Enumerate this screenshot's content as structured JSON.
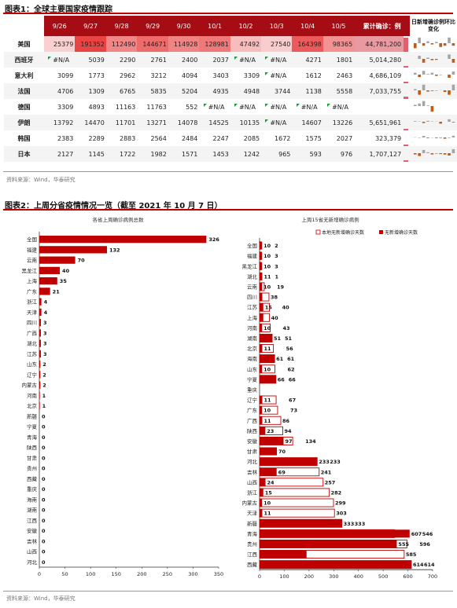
{
  "fig1": {
    "title": "图表1：全球主要国家疫情跟踪",
    "dates": [
      "9/26",
      "9/27",
      "9/28",
      "9/29",
      "9/30",
      "10/1",
      "10/2",
      "10/3",
      "10/4",
      "10/5"
    ],
    "total_header": "累计确诊：例",
    "trend_header": "日新增确诊例环比变化",
    "na_label": "#N/A",
    "rows": [
      {
        "country": "美国",
        "values": [
          "25379",
          "191352",
          "112490",
          "144671",
          "114928",
          "128981",
          "47492",
          "27540",
          "164398",
          "98365"
        ],
        "total": "44,781,200",
        "total_val": 44781200,
        "spark": [
          -0.8,
          0.9,
          -0.4,
          0.3,
          -0.2,
          0.2,
          -0.6,
          -0.4,
          0.9,
          -0.4
        ]
      },
      {
        "country": "西班牙",
        "values": [
          "#N/A",
          "5039",
          "2290",
          "2761",
          "2400",
          "2037",
          "#N/A",
          "#N/A",
          "4271",
          "1801"
        ],
        "total": "5,014,280",
        "total_val": 5014280,
        "spark": [
          0,
          0.5,
          -0.6,
          0.2,
          -0.2,
          -0.15,
          0,
          0,
          0.7,
          -0.6
        ]
      },
      {
        "country": "意大利",
        "values": [
          "3099",
          "1773",
          "2962",
          "3212",
          "4094",
          "3403",
          "3309",
          "#N/A",
          "1612",
          "2463"
        ],
        "total": "4,686,109",
        "total_val": 4686109,
        "spark": [
          0.3,
          -0.4,
          0.6,
          0.1,
          0.3,
          -0.2,
          -0.05,
          0,
          -0.5,
          0.5
        ]
      },
      {
        "country": "法国",
        "values": [
          "4706",
          "1309",
          "6765",
          "5835",
          "5204",
          "4935",
          "4948",
          "3744",
          "1138",
          "5558"
        ],
        "total": "7,033,755",
        "total_val": 7033755,
        "spark": [
          0.2,
          -0.7,
          0.9,
          -0.2,
          -0.1,
          -0.05,
          0.02,
          -0.25,
          -0.7,
          0.9
        ]
      },
      {
        "country": "德国",
        "values": [
          "3309",
          "4893",
          "11163",
          "11763",
          "552",
          "#N/A",
          "#N/A",
          "#N/A",
          "#N/A",
          "#N/A"
        ],
        "total": "",
        "total_val": 0,
        "spark": [
          0.2,
          0.4,
          0.8,
          0.1,
          -0.9,
          0,
          0,
          0,
          0,
          0
        ]
      },
      {
        "country": "伊朗",
        "values": [
          "13792",
          "14470",
          "11701",
          "13271",
          "14078",
          "14525",
          "10135",
          "#N/A",
          "14607",
          "13226"
        ],
        "total": "5,651,961",
        "total_val": 5651961,
        "spark": [
          0.1,
          0.05,
          -0.2,
          0.15,
          0.06,
          0.03,
          -0.3,
          0,
          0.4,
          -0.1
        ]
      },
      {
        "country": "韩国",
        "values": [
          "2383",
          "2289",
          "2883",
          "2564",
          "2484",
          "2247",
          "2085",
          "1672",
          "1575",
          "2027"
        ],
        "total": "323,379",
        "total_val": 323379,
        "spark": [
          0.05,
          -0.04,
          0.25,
          -0.1,
          -0.03,
          -0.1,
          -0.07,
          -0.2,
          -0.06,
          0.28
        ]
      },
      {
        "country": "日本",
        "values": [
          "2127",
          "1145",
          "1722",
          "1982",
          "1571",
          "1453",
          "1242",
          "965",
          "593",
          "976"
        ],
        "total": "1,707,127",
        "total_val": 1707127,
        "spark": [
          -0.2,
          -0.45,
          0.5,
          0.15,
          -0.2,
          -0.07,
          -0.14,
          -0.22,
          -0.38,
          0.64
        ]
      }
    ],
    "source": "资料来源：Wind，华泰研究"
  },
  "fig2": {
    "title": "图表2：上周分省疫情情况一览（截至 2021 年 10 月 7 日）",
    "source": "资料来源：Wind，华泰研究"
  },
  "chart_data": [
    {
      "type": "bar",
      "orientation": "horizontal",
      "title": "各省上周确诊病例总数",
      "categories": [
        "全国",
        "福建",
        "云南",
        "黑龙江",
        "上海",
        "广东",
        "浙江",
        "天津",
        "四川",
        "广西",
        "湖北",
        "江苏",
        "山东",
        "辽宁",
        "内蒙古",
        "河南",
        "北京",
        "新疆",
        "宁夏",
        "青海",
        "陕西",
        "甘肃",
        "贵州",
        "西藏",
        "重庆",
        "海南",
        "湖南",
        "江西",
        "安徽",
        "吉林",
        "山西",
        "河北"
      ],
      "values": [
        326,
        132,
        70,
        40,
        35,
        21,
        4,
        4,
        3,
        3,
        3,
        3,
        2,
        2,
        2,
        1,
        1,
        0,
        0,
        0,
        0,
        0,
        0,
        0,
        0,
        0,
        0,
        0,
        0,
        0,
        0,
        0
      ],
      "xlim": [
        0,
        350
      ],
      "xticks": [
        0,
        50,
        100,
        150,
        200,
        250,
        300,
        350
      ],
      "color": "#c00000"
    },
    {
      "type": "bar",
      "orientation": "horizontal",
      "title": "上周15省无新增确诊病例",
      "legend": "top-right",
      "categories": [
        "全国",
        "福建",
        "黑龙江",
        "湖北",
        "云南",
        "四川",
        "江苏",
        "上海",
        "河南",
        "湖南",
        "北京",
        "海南",
        "山东",
        "宁夏",
        "重庆",
        "辽宁",
        "广东",
        "广西",
        "陕西",
        "安徽",
        "甘肃",
        "河北",
        "吉林",
        "山西",
        "浙江",
        "内蒙古",
        "天津",
        "新疆",
        "青海",
        "贵州",
        "江西",
        "西藏"
      ],
      "series": [
        {
          "name": "本地无新增确诊天数",
          "values": [
            2,
            3,
            3,
            1,
            19,
            38,
            40,
            40,
            43,
            51,
            56,
            61,
            62,
            66,
            0,
            67,
            73,
            86,
            94,
            134,
            0,
            233,
            241,
            257,
            282,
            299,
            303,
            333,
            546,
            596,
            585,
            614
          ],
          "style": "outline"
        },
        {
          "name": "无新增确诊天数",
          "values": [
            10,
            10,
            10,
            11,
            10,
            11,
            15,
            15,
            10,
            51,
            11,
            61,
            10,
            66,
            0,
            11,
            10,
            11,
            23,
            97,
            70,
            233,
            69,
            24,
            15,
            10,
            11,
            333,
            607,
            555,
            190,
            614
          ],
          "style": "filled"
        }
      ],
      "labels_outline": [
        "2",
        "3",
        "3",
        "1",
        "19",
        "38",
        "40",
        "40",
        "43",
        "51",
        "56",
        "61",
        "62",
        "66",
        "",
        "67",
        "73",
        "86",
        "94",
        "134",
        "",
        "233",
        "241",
        "257",
        "282",
        "299",
        "303",
        "333",
        "546",
        "596",
        "585",
        "614"
      ],
      "labels_filled": [
        "10",
        "10",
        "10",
        "11",
        "10",
        "",
        "15",
        "",
        "10",
        "51",
        "11",
        "61",
        "10",
        "66",
        "",
        "11",
        "10",
        "11",
        "23",
        "97",
        "70",
        "233",
        "69",
        "24",
        "15",
        "10",
        "11",
        "333",
        "607",
        "555",
        "",
        "614"
      ],
      "xlim": [
        0,
        700
      ],
      "xticks": [
        0,
        100,
        200,
        300,
        400,
        500,
        600,
        700
      ],
      "color": "#c00000"
    }
  ]
}
